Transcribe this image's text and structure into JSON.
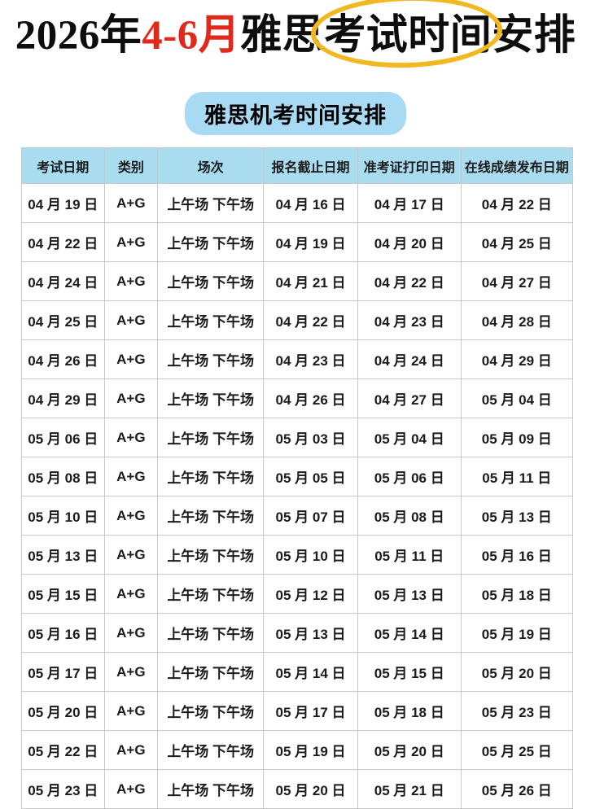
{
  "title": {
    "year": "2026年",
    "months": "4-6月",
    "pre_circle": "雅思",
    "circled": "考试时间",
    "post_circle": "安排"
  },
  "subtitle": "雅思机考时间安排",
  "table": {
    "headers": [
      "考试日期",
      "类别",
      "场次",
      "报名截止日期",
      "准考证打印日期",
      "在线成绩发布日期"
    ],
    "rows": [
      [
        "04 月 19 日",
        "A+G",
        "上午场 下午场",
        "04 月 16 日",
        "04 月 17 日",
        "04 月 22 日"
      ],
      [
        "04 月 22 日",
        "A+G",
        "上午场 下午场",
        "04 月 19 日",
        "04 月 20 日",
        "04 月 25 日"
      ],
      [
        "04 月 24 日",
        "A+G",
        "上午场 下午场",
        "04 月 21 日",
        "04 月 22 日",
        "04 月 27 日"
      ],
      [
        "04 月 25 日",
        "A+G",
        "上午场 下午场",
        "04 月 22 日",
        "04 月 23 日",
        "04 月 28 日"
      ],
      [
        "04 月 26 日",
        "A+G",
        "上午场 下午场",
        "04 月 23 日",
        "04 月 24 日",
        "04 月 29 日"
      ],
      [
        "04 月 29 日",
        "A+G",
        "上午场 下午场",
        "04 月 26 日",
        "04 月 27 日",
        "05 月 04 日"
      ],
      [
        "05 月 06 日",
        "A+G",
        "上午场 下午场",
        "05 月 03 日",
        "05 月 04 日",
        "05 月 09 日"
      ],
      [
        "05 月 08 日",
        "A+G",
        "上午场 下午场",
        "05 月 05 日",
        "05 月 06 日",
        "05 月 11 日"
      ],
      [
        "05 月 10 日",
        "A+G",
        "上午场 下午场",
        "05 月 07 日",
        "05 月 08 日",
        "05 月 13 日"
      ],
      [
        "05 月 13 日",
        "A+G",
        "上午场 下午场",
        "05 月 10 日",
        "05 月 11 日",
        "05 月 16 日"
      ],
      [
        "05 月 15 日",
        "A+G",
        "上午场 下午场",
        "05 月 12 日",
        "05 月 13 日",
        "05 月 18 日"
      ],
      [
        "05 月 16 日",
        "A+G",
        "上午场 下午场",
        "05 月 13 日",
        "05 月 14 日",
        "05 月 19 日"
      ],
      [
        "05 月 17 日",
        "A+G",
        "上午场 下午场",
        "05 月 14 日",
        "05 月 15 日",
        "05 月 20 日"
      ],
      [
        "05 月 20 日",
        "A+G",
        "上午场 下午场",
        "05 月 17 日",
        "05 月 18 日",
        "05 月 23 日"
      ],
      [
        "05 月 22 日",
        "A+G",
        "上午场 下午场",
        "05 月 19 日",
        "05 月 20 日",
        "05 月 25 日"
      ],
      [
        "05 月 23 日",
        "A+G",
        "上午场 下午场",
        "05 月 20 日",
        "05 月 21 日",
        "05 月 26 日"
      ]
    ]
  },
  "colors": {
    "accent_red": "#e0291a",
    "circle_yellow": "#f3b71f",
    "header_bg": "#aadcf0",
    "subtitle_bg": "#a8daf3",
    "grid_border": "#c8c8c8"
  }
}
